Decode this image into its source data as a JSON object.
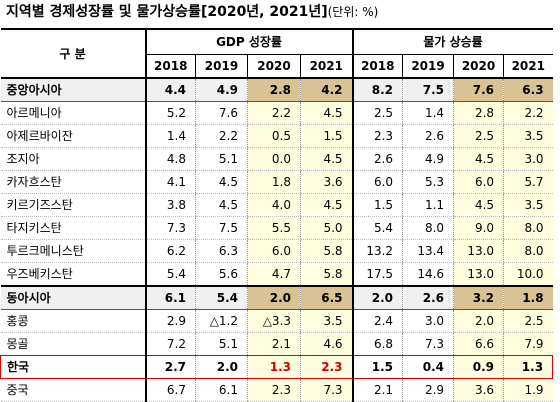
{
  "title": {
    "main": "지역별 경제성장률 및 물가상승률[2020년, 2021년]",
    "unit": "(단위: %)"
  },
  "header": {
    "category": "구 분",
    "gdp_group": "GDP 성장률",
    "cpi_group": "물가 상승률",
    "years": [
      "2018",
      "2019",
      "2020",
      "2021",
      "2018",
      "2019",
      "2020",
      "2021"
    ]
  },
  "rows": [
    {
      "name": "중앙아시아",
      "type": "region",
      "v": [
        "4.4",
        "4.9",
        "2.8",
        "4.2",
        "8.2",
        "7.5",
        "7.6",
        "6.3"
      ]
    },
    {
      "name": "아르메니아",
      "type": "normal",
      "v": [
        "5.2",
        "7.6",
        "2.2",
        "4.5",
        "2.5",
        "1.4",
        "2.8",
        "2.2"
      ]
    },
    {
      "name": "아제르바이잔",
      "type": "normal",
      "v": [
        "1.4",
        "2.2",
        "0.5",
        "1.5",
        "2.3",
        "2.6",
        "2.5",
        "3.5"
      ]
    },
    {
      "name": "조지아",
      "type": "normal",
      "v": [
        "4.8",
        "5.1",
        "0.0",
        "4.5",
        "2.6",
        "4.9",
        "4.5",
        "3.0"
      ]
    },
    {
      "name": "카자흐스탄",
      "type": "normal",
      "v": [
        "4.1",
        "4.5",
        "1.8",
        "3.6",
        "6.0",
        "5.3",
        "6.0",
        "5.7"
      ]
    },
    {
      "name": "키르기즈스탄",
      "type": "normal",
      "v": [
        "3.8",
        "4.5",
        "4.0",
        "4.5",
        "1.5",
        "1.1",
        "4.5",
        "3.5"
      ]
    },
    {
      "name": "타지키스탄",
      "type": "normal",
      "v": [
        "7.3",
        "7.5",
        "5.5",
        "5.0",
        "5.4",
        "8.0",
        "9.0",
        "8.0"
      ]
    },
    {
      "name": "투르크메니스탄",
      "type": "normal",
      "v": [
        "6.2",
        "6.3",
        "6.0",
        "5.8",
        "13.2",
        "13.4",
        "13.0",
        "8.0"
      ]
    },
    {
      "name": "우즈베키스탄",
      "type": "normal",
      "v": [
        "5.4",
        "5.6",
        "4.7",
        "5.8",
        "17.5",
        "14.6",
        "13.0",
        "10.0"
      ]
    },
    {
      "name": "동아시아",
      "type": "region",
      "v": [
        "6.1",
        "5.4",
        "2.0",
        "6.5",
        "2.0",
        "2.6",
        "3.2",
        "1.8"
      ]
    },
    {
      "name": "홍콩",
      "type": "normal",
      "v": [
        "2.9",
        "△1.2",
        "△3.3",
        "3.5",
        "2.4",
        "3.0",
        "2.0",
        "2.5"
      ]
    },
    {
      "name": "몽골",
      "type": "normal",
      "v": [
        "7.2",
        "5.1",
        "2.1",
        "4.6",
        "6.8",
        "7.3",
        "6.6",
        "7.9"
      ]
    },
    {
      "name": "한국",
      "type": "korea",
      "v": [
        "2.7",
        "2.0",
        "1.3",
        "2.3",
        "1.5",
        "0.4",
        "0.9",
        "1.3"
      ]
    },
    {
      "name": "중국",
      "type": "normal",
      "v": [
        "6.7",
        "6.1",
        "2.3",
        "7.3",
        "2.1",
        "2.9",
        "3.6",
        "1.9"
      ]
    }
  ]
}
